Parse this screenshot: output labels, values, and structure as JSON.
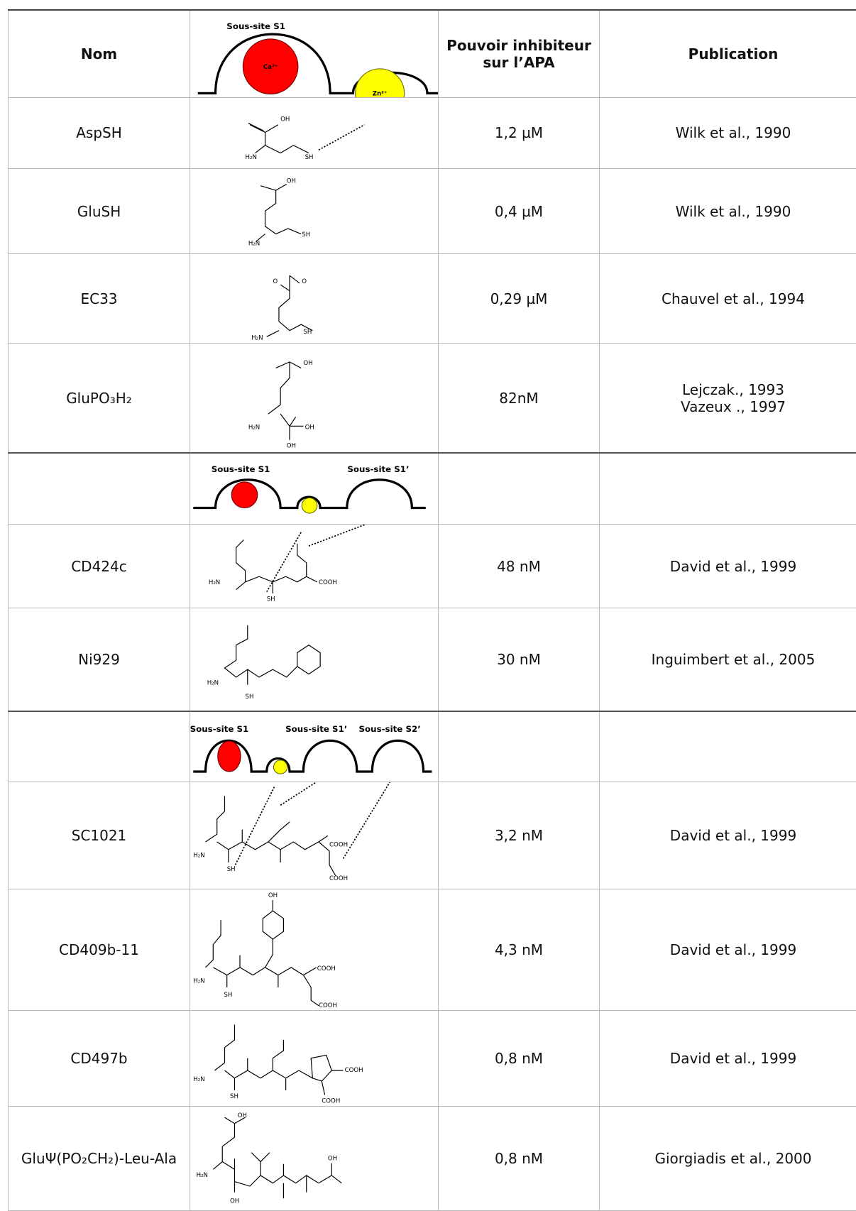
{
  "header": {
    "name": "Nom",
    "activity": "Pouvoir inhibiteur sur l’APA",
    "publication": "Publication",
    "site_label": "Sous-site S1",
    "ions": [
      "Ca²⁺",
      "Zn²⁺"
    ]
  },
  "rows": [
    {
      "name": "AspSH",
      "structure_labels": [
        "OH",
        "H₂N",
        "SH"
      ],
      "activity": "1,2 µM",
      "publication": [
        "Wilk et al., 1990"
      ]
    },
    {
      "name": "GluSH",
      "structure_labels": [
        "OH",
        "H₂N",
        "SH"
      ],
      "activity": "0,4 µM",
      "publication": [
        "Wilk et al., 1990"
      ]
    },
    {
      "name": "EC33",
      "structure_labels": [
        "O",
        "O",
        "H₂N",
        "SH"
      ],
      "activity": "0,29 µM",
      "publication": [
        "Chauvel et al., 1994"
      ]
    },
    {
      "name": "GluPO₃H₂",
      "structure_labels": [
        "OH",
        "H₂N",
        "OH",
        "OH"
      ],
      "activity": "82nM",
      "publication": [
        "Lejczak., 1993",
        "Vazeux ., 1997"
      ]
    },
    {
      "name": "CD424c",
      "structure_labels": [
        "H₂N",
        "SH",
        "COOH"
      ],
      "activity": "48 nM",
      "publication": [
        "David et al., 1999"
      ]
    },
    {
      "name": "Ni929",
      "structure_labels": [
        "H₂N",
        "SH"
      ],
      "activity": "30 nM",
      "publication": [
        "Inguimbert et al., 2005"
      ]
    },
    {
      "name": "SC1021",
      "structure_labels": [
        "H₂N",
        "SH",
        "COOH",
        "COOH"
      ],
      "activity": "3,2 nM",
      "publication": [
        "David et al., 1999"
      ]
    },
    {
      "name": "CD409b-11",
      "structure_labels": [
        "OH",
        "H₂N",
        "SH",
        "COOH",
        "COOH"
      ],
      "activity": "4,3 nM",
      "publication": [
        "David et al., 1999"
      ]
    },
    {
      "name": "CD497b",
      "structure_labels": [
        "H₂N",
        "SH",
        "COOH",
        "COOH"
      ],
      "activity": "0,8 nM",
      "publication": [
        "David et al., 1999"
      ]
    },
    {
      "name": "GluΨ(PO₂CH₂)-Leu-Ala",
      "structure_labels": [
        "OH",
        "H₂N",
        "OH",
        "OH"
      ],
      "activity": "0,8 nM",
      "publication": [
        "Giorgiadis et al., 2000"
      ]
    }
  ],
  "site_diagrams": [
    {
      "labels": [
        "Sous-site S1",
        "Sous-site S1’"
      ]
    },
    {
      "labels": [
        "Sous-site S1",
        "Sous-site S1’",
        "Sous-site S2’"
      ]
    }
  ]
}
